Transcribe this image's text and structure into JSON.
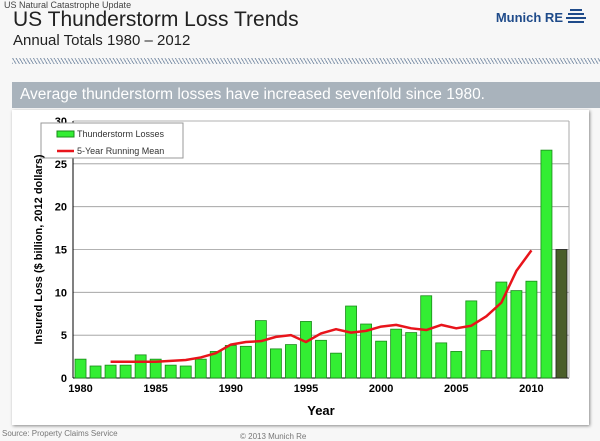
{
  "header": {
    "kicker": "US Natural Catastrophe Update",
    "title": "US Thunderstorm Loss Trends",
    "subtitle": "Annual Totals 1980 – 2012",
    "logo_text": "Munich RE"
  },
  "banner": "Average thunderstorm losses have increased sevenfold since 1980.",
  "footer": {
    "source": "Source: Property Claims Service",
    "copyright": "© 2013 Munich Re"
  },
  "chart_data": {
    "type": "bar",
    "title": "",
    "xlabel": "Year",
    "ylabel": "Insured Loss ($ billion, 2012 dollars)",
    "ylim": [
      0,
      30
    ],
    "yticks": [
      0,
      5,
      10,
      15,
      20,
      25,
      30
    ],
    "xticks": [
      1980,
      1985,
      1990,
      1995,
      2000,
      2005,
      2010
    ],
    "grid": true,
    "legend_position": "top-left",
    "colors": {
      "bars": "#33ee33",
      "highlight": "#4a5e2a",
      "mean": "#e8141b"
    },
    "categories": [
      1980,
      1981,
      1982,
      1983,
      1984,
      1985,
      1986,
      1987,
      1988,
      1989,
      1990,
      1991,
      1992,
      1993,
      1994,
      1995,
      1996,
      1997,
      1998,
      1999,
      2000,
      2001,
      2002,
      2003,
      2004,
      2005,
      2006,
      2007,
      2008,
      2009,
      2010,
      2011,
      2012
    ],
    "series": [
      {
        "name": "Thunderstorm Losses",
        "type": "bar",
        "values": [
          2.2,
          1.4,
          1.5,
          1.5,
          2.7,
          2.2,
          1.5,
          1.4,
          2.2,
          3.1,
          3.8,
          3.7,
          6.7,
          3.4,
          3.9,
          6.6,
          4.4,
          2.9,
          8.4,
          6.3,
          4.3,
          5.7,
          5.3,
          9.6,
          4.1,
          3.1,
          9.0,
          3.2,
          11.2,
          10.2,
          11.3,
          26.6,
          15.0
        ]
      },
      {
        "name": "5-Year Running Mean",
        "type": "line",
        "x": [
          1982,
          1983,
          1984,
          1985,
          1986,
          1987,
          1988,
          1989,
          1990,
          1991,
          1992,
          1993,
          1994,
          1995,
          1996,
          1997,
          1998,
          1999,
          2000,
          2001,
          2002,
          2003,
          2004,
          2005,
          2006,
          2007,
          2008,
          2009,
          2010
        ],
        "values": [
          1.9,
          1.9,
          1.9,
          1.9,
          2.0,
          2.1,
          2.4,
          2.9,
          3.9,
          4.2,
          4.3,
          4.8,
          5.0,
          4.2,
          5.2,
          5.7,
          5.3,
          5.5,
          6.0,
          6.2,
          5.8,
          5.6,
          6.2,
          5.8,
          6.1,
          7.2,
          8.8,
          12.5,
          14.9
        ]
      }
    ]
  }
}
